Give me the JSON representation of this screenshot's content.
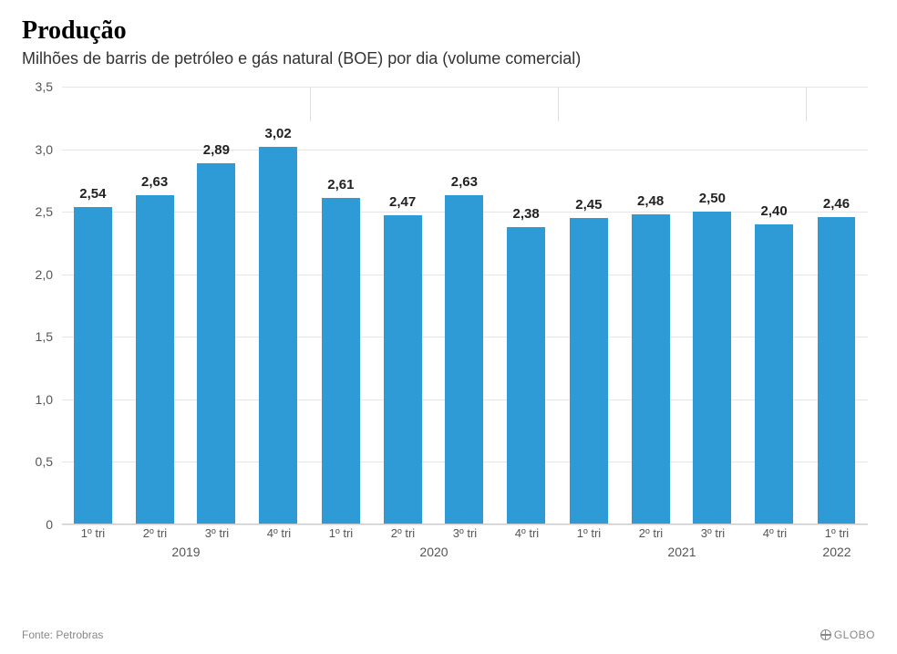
{
  "title": "Produção",
  "subtitle": "Milhões de barris de petróleo e gás natural (BOE) por dia (volume comercial)",
  "source": "Fonte: Petrobras",
  "brand": "GLOBO",
  "chart": {
    "type": "bar",
    "ylim": [
      0,
      3.5
    ],
    "yticks": [
      0,
      0.5,
      1.0,
      1.5,
      2.0,
      2.5,
      3.0,
      3.5
    ],
    "ytick_labels": [
      "0",
      "0,5",
      "1,0",
      "1,5",
      "2,0",
      "2,5",
      "3,0",
      "3,5"
    ],
    "grid_color": "#e6e6e6",
    "axis_color": "#cccccc",
    "background_color": "#ffffff",
    "bar_color": "#2e9bd6",
    "bar_width_ratio": 0.62,
    "label_fontsize": 15,
    "tick_fontsize": 14,
    "title_fontsize": 28,
    "subtitle_fontsize": 18,
    "value_label_color": "#222222",
    "tick_label_color": "#555555",
    "year_separator_color": "#dddddd",
    "groups": [
      {
        "year": "2019",
        "bars": [
          {
            "label": "2,54",
            "value": 2.54,
            "quarter": "1º tri"
          },
          {
            "label": "2,63",
            "value": 2.63,
            "quarter": "2º tri"
          },
          {
            "label": "2,89",
            "value": 2.89,
            "quarter": "3º tri"
          },
          {
            "label": "3,02",
            "value": 3.02,
            "quarter": "4º tri"
          }
        ]
      },
      {
        "year": "2020",
        "bars": [
          {
            "label": "2,61",
            "value": 2.61,
            "quarter": "1º tri"
          },
          {
            "label": "2,47",
            "value": 2.47,
            "quarter": "2º tri"
          },
          {
            "label": "2,63",
            "value": 2.63,
            "quarter": "3º tri"
          },
          {
            "label": "2,38",
            "value": 2.38,
            "quarter": "4º tri"
          }
        ]
      },
      {
        "year": "2021",
        "bars": [
          {
            "label": "2,45",
            "value": 2.45,
            "quarter": "1º tri"
          },
          {
            "label": "2,48",
            "value": 2.48,
            "quarter": "2º tri"
          },
          {
            "label": "2,50",
            "value": 2.5,
            "quarter": "3º tri"
          },
          {
            "label": "2,40",
            "value": 2.4,
            "quarter": "4º tri"
          }
        ]
      },
      {
        "year": "2022",
        "bars": [
          {
            "label": "2,46",
            "value": 2.46,
            "quarter": "1º tri"
          }
        ]
      }
    ]
  }
}
